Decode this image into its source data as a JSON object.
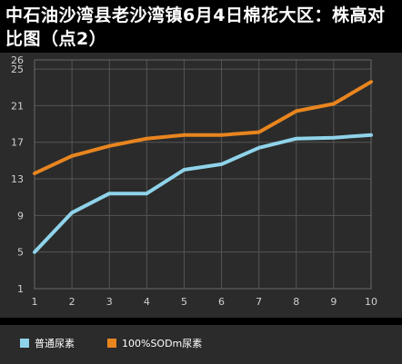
{
  "title": "中石油沙湾县老沙湾镇6月4日棉花大区：株高对比图（点2）",
  "colors": {
    "series_1": "#8fd3ea",
    "series_2": "#e8851f",
    "panel": "#2b2b2b",
    "grid": "#555555",
    "tick_text": "#cfcfcf"
  },
  "chart_data": {
    "type": "line",
    "title": "中石油沙湾县老沙湾镇6月4日棉花大区：株高对比图（点2）",
    "xlabel": "",
    "ylabel": "",
    "x": [
      1,
      2,
      3,
      4,
      5,
      6,
      7,
      8,
      9,
      10
    ],
    "x_tick_labels": [
      "1",
      "2",
      "3",
      "4",
      "5",
      "6",
      "7",
      "8",
      "9",
      "10"
    ],
    "y_tick_labels": [
      "1",
      "5",
      "9",
      "13",
      "17",
      "21",
      "25",
      "26"
    ],
    "y_ticks": [
      1,
      5,
      9,
      13,
      17,
      21,
      25,
      26
    ],
    "ylim": [
      1,
      26
    ],
    "grid": true,
    "legend_position": "bottom-left",
    "series": [
      {
        "name": "普通尿素",
        "color": "#8fd3ea",
        "values": [
          5.0,
          9.3,
          11.4,
          11.4,
          14.0,
          14.6,
          16.4,
          17.4,
          17.5,
          17.8
        ]
      },
      {
        "name": "100%SODm尿素",
        "color": "#e8851f",
        "values": [
          13.6,
          15.5,
          16.6,
          17.4,
          17.8,
          17.8,
          18.1,
          20.4,
          21.2,
          23.6
        ]
      }
    ]
  }
}
